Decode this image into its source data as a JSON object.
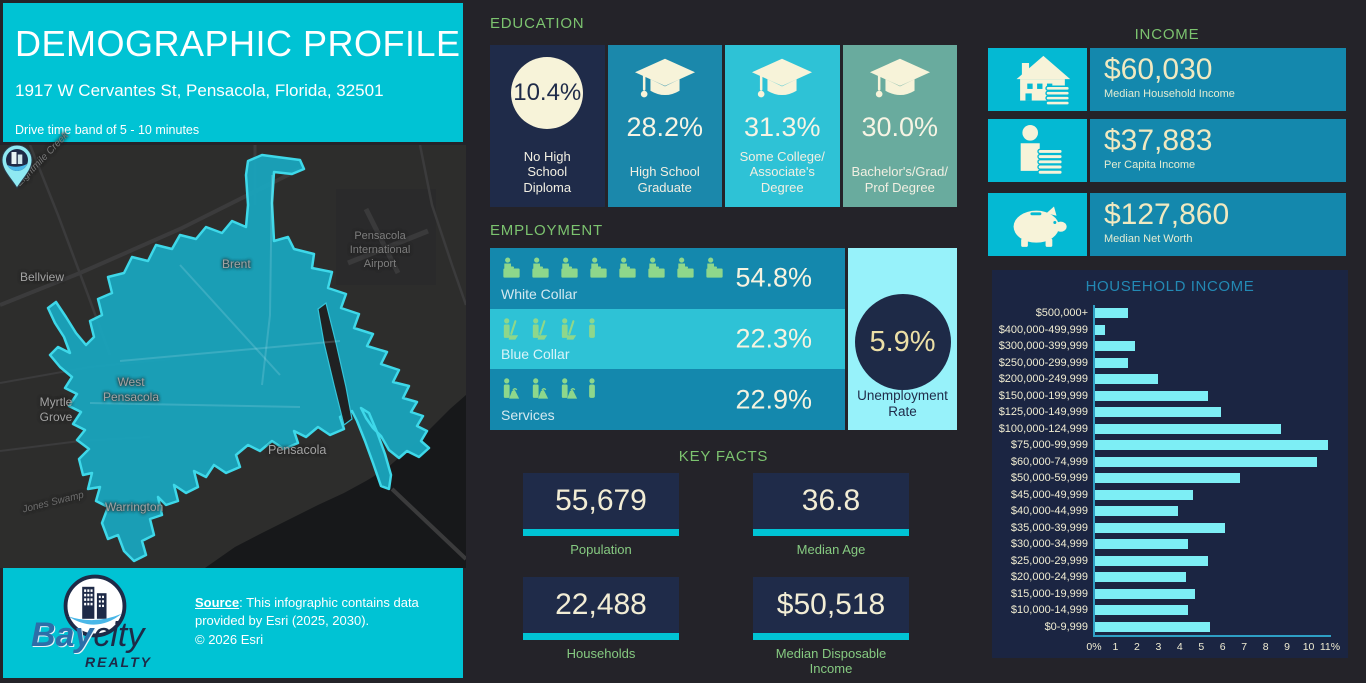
{
  "header": {
    "title": "DEMOGRAPHIC PROFILE",
    "address": "1917 W Cervantes St, Pensacola, Florida, 32501",
    "band": "Drive time band of 5 - 10 minutes"
  },
  "education": {
    "title": "EDUCATION",
    "tiles": [
      {
        "value": "10.4%",
        "label": "No High\nSchool\nDiploma",
        "color": "#1f2b49",
        "circle": true
      },
      {
        "value": "28.2%",
        "label": "High School\nGraduate",
        "color": "#1b88ab",
        "circle": false
      },
      {
        "value": "31.3%",
        "label": "Some College/\nAssociate's\nDegree",
        "color": "#2ec2d6",
        "circle": false
      },
      {
        "value": "30.0%",
        "label": "Bachelor's/Grad/\nProf Degree",
        "color": "#69ab9e",
        "circle": false
      }
    ]
  },
  "employment": {
    "title": "EMPLOYMENT",
    "rows": [
      {
        "label": "White Collar",
        "value": "54.8%",
        "icon": "white-collar",
        "count": 8,
        "partial": false,
        "color": "#1488ad"
      },
      {
        "label": "Blue Collar",
        "value": "22.3%",
        "icon": "blue-collar",
        "count": 3,
        "partial": true,
        "color": "#2ec2d6"
      },
      {
        "label": "Services",
        "value": "22.9%",
        "icon": "services",
        "count": 3,
        "partial": true,
        "color": "#1488ad"
      }
    ],
    "unemployment": {
      "value": "5.9%",
      "label": "Unemployment Rate"
    }
  },
  "key_facts": {
    "title": "KEY FACTS",
    "cards": [
      {
        "value": "55,679",
        "label": "Population"
      },
      {
        "value": "36.8",
        "label": "Median Age"
      },
      {
        "value": "22,488",
        "label": "Households"
      },
      {
        "value": "$50,518",
        "label": "Median Disposable Income"
      }
    ]
  },
  "income": {
    "title": "INCOME",
    "rows": [
      {
        "icon": "house-coins",
        "value": "$60,030",
        "label": "Median Household Income"
      },
      {
        "icon": "person-coins",
        "value": "$37,883",
        "label": "Per Capita Income"
      },
      {
        "icon": "piggy-bank",
        "value": "$127,860",
        "label": "Median Net Worth"
      }
    ]
  },
  "chart_data": {
    "type": "bar",
    "orientation": "horizontal",
    "title": "HOUSEHOLD INCOME",
    "categories": [
      "$500,000+",
      "$400,000-499,999",
      "$300,000-399,999",
      "$250,000-299,999",
      "$200,000-249,999",
      "$150,000-199,999",
      "$125,000-149,999",
      "$100,000-124,999",
      "$75,000-99,999",
      "$60,000-74,999",
      "$50,000-59,999",
      "$45,000-49,999",
      "$40,000-44,999",
      "$35,000-39,999",
      "$30,000-34,999",
      "$25,000-29,999",
      "$20,000-24,999",
      "$15,000-19,999",
      "$10,000-14,999",
      "$0-9,999"
    ],
    "values": [
      1.6,
      0.5,
      1.9,
      1.6,
      3.0,
      5.3,
      5.9,
      8.7,
      10.9,
      10.4,
      6.8,
      4.6,
      3.9,
      6.1,
      4.4,
      5.3,
      4.3,
      4.7,
      4.4,
      5.4
    ],
    "xlabel": "",
    "ylabel": "",
    "xlim": [
      0,
      11
    ],
    "x_ticks": [
      "0%",
      "1",
      "2",
      "3",
      "4",
      "5",
      "6",
      "7",
      "8",
      "9",
      "10",
      "11%"
    ],
    "bar_color": "#7deef5",
    "grid": false,
    "legend": "none"
  },
  "map": {
    "labels": [
      "Eightmile Creek",
      "Bellview",
      "Brent",
      "Pensacola\nInternational\nAirport",
      "West\nPensacola",
      "Myrtle\nGrove",
      "Pensacola",
      "Warrington",
      "Jones Swamp"
    ]
  },
  "footer": {
    "logo": {
      "bay": "Bay",
      "city": "city",
      "realty": "REALTY"
    },
    "source_label": "Source",
    "source_text": ": This infographic contains data provided by Esri (2025, 2030).",
    "copyright": "© 2026 Esri"
  },
  "colors": {
    "accent_cyan": "#00c3d4",
    "navy": "#1f2b49",
    "row_blue": "#1488ad",
    "row_cyan": "#2ec2d6",
    "sage": "#69ab9e",
    "light_cyan": "#97f2fa",
    "chart_navy": "#1b2542",
    "bar_cyan": "#7deef5",
    "title_green": "#7cc36f",
    "cream": "#f3eed6",
    "value_cream": "#f0e9c0",
    "icon_green": "#8ed78b"
  }
}
